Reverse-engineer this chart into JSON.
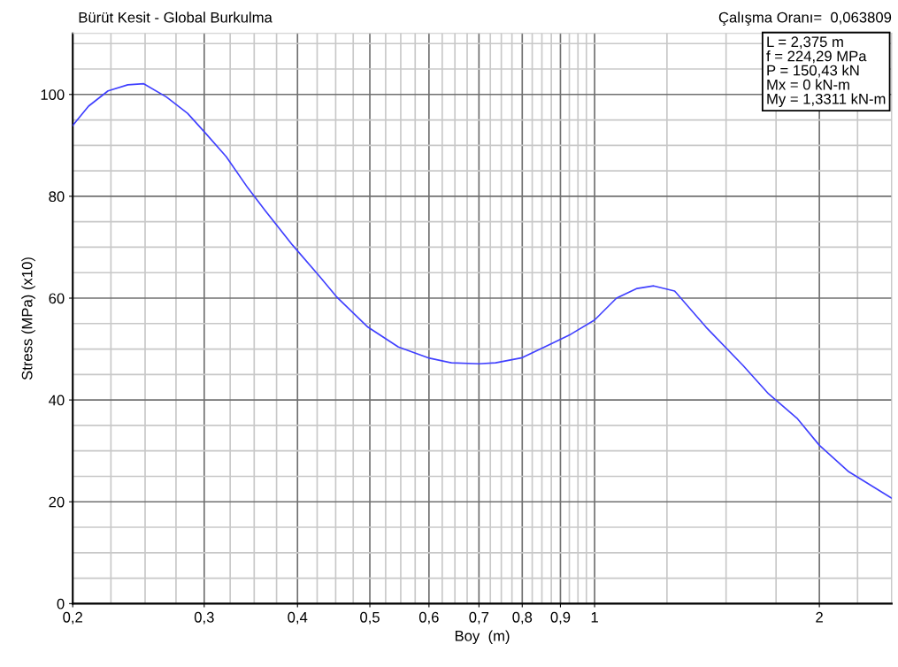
{
  "chart_data": {
    "type": "line",
    "title": "Bürüt Kesit - Global Burkulma",
    "xlabel": "Boy  (m)",
    "ylabel": "Stress (MPa) (x10)",
    "annotations": [
      "Çalışma Oranı=  0,063809",
      "L = 2,375 m\nf = 224,29 MPa\nP = 150,43 kN\nMx = 0 kN-m\nMy = 1,3311 kN-m"
    ],
    "log": "x",
    "grid": true,
    "marker": "none",
    "line_style": "solid",
    "xlim": [
      0.2,
      2.5
    ],
    "ylim": [
      0,
      112
    ],
    "xticks": [
      {
        "value": 0.2,
        "label": "0,2"
      },
      {
        "value": 0.3,
        "label": "0,3"
      },
      {
        "value": 0.4,
        "label": "0,4"
      },
      {
        "value": 0.5,
        "label": "0,5"
      },
      {
        "value": 0.6,
        "label": "0,6"
      },
      {
        "value": 0.7,
        "label": "0,7"
      },
      {
        "value": 0.8,
        "label": "0,8"
      },
      {
        "value": 0.9,
        "label": "0,9"
      },
      {
        "value": 1,
        "label": "1"
      },
      {
        "value": 2,
        "label": "2"
      }
    ],
    "yticks": [
      0,
      20,
      40,
      60,
      80,
      100
    ],
    "series": [
      {
        "color": "#4040ff",
        "x": [
          0.2,
          0.21,
          0.223,
          0.237,
          0.249,
          0.267,
          0.285,
          0.302,
          0.321,
          0.343,
          0.362,
          0.394,
          0.428,
          0.451,
          0.497,
          0.546,
          0.601,
          0.643,
          0.7,
          0.737,
          0.8,
          0.868,
          0.929,
          1.0,
          1.07,
          1.14,
          1.2,
          1.28,
          1.41,
          1.58,
          1.71,
          1.87,
          2.0,
          2.19,
          2.5
        ],
        "values": [
          93.9,
          97.7,
          100.7,
          101.9,
          102.1,
          99.5,
          96.3,
          92.2,
          87.8,
          81.7,
          77.2,
          70.4,
          64.3,
          60.3,
          54.3,
          50.4,
          48.2,
          47.3,
          47.1,
          47.3,
          48.3,
          50.8,
          52.9,
          55.7,
          60.0,
          61.9,
          62.4,
          61.4,
          54.3,
          46.8,
          41.2,
          36.3,
          31.1,
          25.9,
          20.7
        ]
      }
    ]
  }
}
